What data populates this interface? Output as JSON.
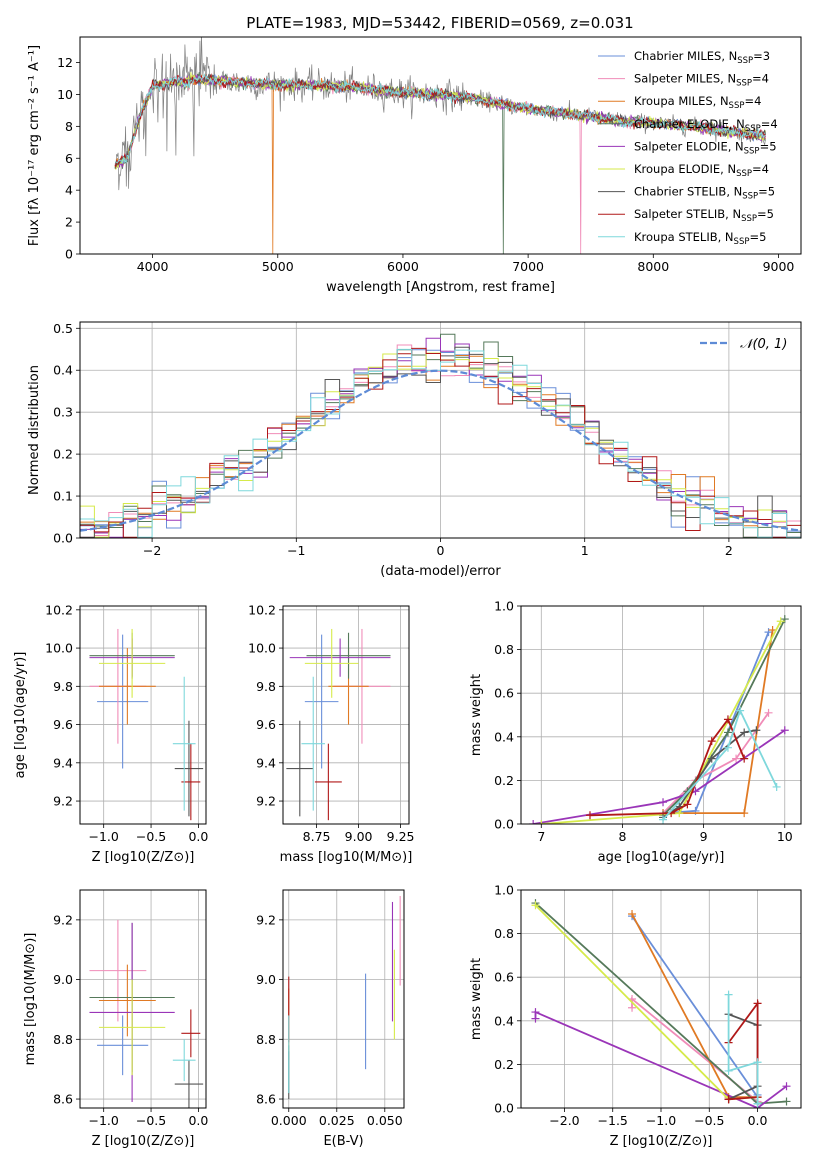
{
  "figure": {
    "title": "PLATE=1983, MJD=53442, FIBERID=0569, z=0.031"
  },
  "colors": {
    "Chabrier MILES": "#6a8fd9",
    "Salpeter MILES": "#f08cb8",
    "Kroupa MILES": "#e07a24",
    "Chabrier ELODIE": "#55795a",
    "Salpeter ELODIE": "#9a35b8",
    "Kroupa ELODIE": "#d6ea4a",
    "Chabrier STELIB": "#555555",
    "Salpeter STELIB": "#b01818",
    "Kroupa STELIB": "#7fd8dc",
    "data": "#808080",
    "normal": "#5e8bd6"
  },
  "chart_data": [
    {
      "id": "spectrum",
      "type": "line",
      "title": "PLATE=1983, MJD=53442, FIBERID=0569, z=0.031",
      "xlabel": "wavelength [Angstrom, rest frame]",
      "ylabel": "Flux [fλ 10⁻¹⁷ erg cm⁻² s⁻¹ A⁻¹]",
      "xlim": [
        3420,
        9180
      ],
      "ylim": [
        0,
        13.6
      ],
      "xticks": [
        4000,
        5000,
        6000,
        7000,
        8000,
        9000
      ],
      "yticks": [
        0,
        2,
        4,
        6,
        8,
        10,
        12
      ],
      "grid": false,
      "legend_position": "top-right",
      "series": [
        {
          "name": "Chabrier MILES",
          "nssp": "3"
        },
        {
          "name": "Salpeter MILES",
          "nssp": "4"
        },
        {
          "name": "Kroupa MILES",
          "nssp": "4"
        },
        {
          "name": "Chabrier ELODIE",
          "nssp": "4"
        },
        {
          "name": "Salpeter ELODIE",
          "nssp": "5"
        },
        {
          "name": "Kroupa ELODIE",
          "nssp": "4"
        },
        {
          "name": "Chabrier STELIB",
          "nssp": "5"
        },
        {
          "name": "Salpeter STELIB",
          "nssp": "5"
        },
        {
          "name": "Kroupa STELIB",
          "nssp": "5"
        }
      ],
      "continuum": {
        "x": [
          3700,
          3800,
          3900,
          4000,
          4100,
          4200,
          4400,
          4600,
          4800,
          5000,
          5200,
          5500,
          5800,
          6000,
          6300,
          6600,
          6800,
          7000,
          7300,
          7600,
          7800,
          8000,
          8300,
          8600,
          8900
        ],
        "y": [
          5.8,
          6.4,
          9.0,
          10.8,
          11.0,
          11.1,
          10.9,
          10.8,
          10.7,
          10.6,
          10.6,
          10.5,
          10.3,
          10.1,
          10.0,
          9.7,
          9.4,
          9.1,
          8.8,
          8.5,
          8.3,
          8.2,
          8.0,
          7.7,
          7.4
        ]
      }
    },
    {
      "id": "residuals",
      "type": "histogram",
      "xlabel": "(data-model)/error",
      "ylabel": "Normed distribution",
      "xlim": [
        -2.5,
        2.5
      ],
      "ylim": [
        0,
        0.515
      ],
      "xticks": [
        -2,
        -1,
        0,
        1,
        2
      ],
      "yticks": [
        0.0,
        0.1,
        0.2,
        0.3,
        0.4,
        0.5
      ],
      "grid": true,
      "legend": "𝒩(0, 1)",
      "legend_position": "top-right",
      "bin_width": 0.1
    },
    {
      "id": "age-vs-Z",
      "type": "errorbar",
      "xlabel": "Z [log10(Z/Z⊙)]",
      "ylabel": "age  [log10(age/yr)]",
      "xlim": [
        -1.25,
        0.08
      ],
      "ylim": [
        9.08,
        10.22
      ],
      "xticks": [
        -1.0,
        -0.5,
        0.0
      ],
      "yticks": [
        9.2,
        9.4,
        9.6,
        9.8,
        10.0,
        10.2
      ],
      "grid": true,
      "points": [
        {
          "model": "Chabrier MILES",
          "x": -0.8,
          "y": 9.72,
          "xerr": 0.27,
          "yerr": 0.35
        },
        {
          "model": "Salpeter MILES",
          "x": -0.85,
          "y": 9.8,
          "xerr": 0.3,
          "yerr": 0.3
        },
        {
          "model": "Kroupa MILES",
          "x": -0.75,
          "y": 9.8,
          "xerr": 0.3,
          "yerr": 0.2
        },
        {
          "model": "Chabrier ELODIE",
          "x": -0.7,
          "y": 9.96,
          "xerr": 0.45,
          "yerr": 0.12
        },
        {
          "model": "Salpeter ELODIE",
          "x": -0.7,
          "y": 9.95,
          "xerr": 0.45,
          "yerr": 0.1
        },
        {
          "model": "Kroupa ELODIE",
          "x": -0.7,
          "y": 9.92,
          "xerr": 0.35,
          "yerr": 0.18
        },
        {
          "model": "Chabrier STELIB",
          "x": -0.1,
          "y": 9.37,
          "xerr": 0.15,
          "yerr": 0.25
        },
        {
          "model": "Salpeter STELIB",
          "x": -0.08,
          "y": 9.3,
          "xerr": 0.1,
          "yerr": 0.2
        },
        {
          "model": "Kroupa STELIB",
          "x": -0.15,
          "y": 9.5,
          "xerr": 0.12,
          "yerr": 0.35
        }
      ]
    },
    {
      "id": "age-vs-mass",
      "type": "errorbar",
      "xlabel": "mass [log10(M/M⊙)]",
      "ylabel": "",
      "xlim": [
        8.55,
        9.3
      ],
      "ylim": [
        9.08,
        10.22
      ],
      "xticks": [
        8.75,
        9.0,
        9.25
      ],
      "yticks": [
        9.2,
        9.4,
        9.6,
        9.8,
        10.0,
        10.2
      ],
      "grid": true,
      "points": [
        {
          "model": "Chabrier MILES",
          "x": 8.78,
          "y": 9.72,
          "xerr": 0.1,
          "yerr": 0.35
        },
        {
          "model": "Salpeter MILES",
          "x": 9.02,
          "y": 9.8,
          "xerr": 0.17,
          "yerr": 0.3
        },
        {
          "model": "Kroupa MILES",
          "x": 8.94,
          "y": 9.8,
          "xerr": 0.12,
          "yerr": 0.2
        },
        {
          "model": "Chabrier ELODIE",
          "x": 8.94,
          "y": 9.96,
          "xerr": 0.25,
          "yerr": 0.12
        },
        {
          "model": "Salpeter ELODIE",
          "x": 8.89,
          "y": 9.95,
          "xerr": 0.3,
          "yerr": 0.1
        },
        {
          "model": "Kroupa ELODIE",
          "x": 8.84,
          "y": 9.92,
          "xerr": 0.16,
          "yerr": 0.18
        },
        {
          "model": "Chabrier STELIB",
          "x": 8.65,
          "y": 9.37,
          "xerr": 0.08,
          "yerr": 0.25
        },
        {
          "model": "Salpeter STELIB",
          "x": 8.82,
          "y": 9.3,
          "xerr": 0.08,
          "yerr": 0.2
        },
        {
          "model": "Kroupa STELIB",
          "x": 8.73,
          "y": 9.5,
          "xerr": 0.07,
          "yerr": 0.35
        }
      ]
    },
    {
      "id": "weight-vs-age",
      "type": "line",
      "xlabel": "age  [log10(age/yr)]",
      "ylabel": "mass weight",
      "xlim": [
        6.75,
        10.2
      ],
      "ylim": [
        0,
        1.0
      ],
      "xticks": [
        7,
        8,
        9,
        10
      ],
      "yticks": [
        0.0,
        0.2,
        0.4,
        0.6,
        0.8,
        1.0
      ],
      "grid": true,
      "series": [
        {
          "name": "Chabrier MILES",
          "x": [
            8.5,
            8.9,
            9.8
          ],
          "y": [
            0.05,
            0.06,
            0.88
          ]
        },
        {
          "name": "Salpeter MILES",
          "x": [
            8.5,
            8.9,
            9.4,
            9.8
          ],
          "y": [
            0.05,
            0.2,
            0.3,
            0.51
          ]
        },
        {
          "name": "Kroupa MILES",
          "x": [
            8.5,
            9.5,
            9.85
          ],
          "y": [
            0.05,
            0.05,
            0.89
          ]
        },
        {
          "name": "Chabrier ELODIE",
          "x": [
            8.5,
            8.8,
            9.3,
            10.0
          ],
          "y": [
            0.04,
            0.15,
            0.42,
            0.94
          ]
        },
        {
          "name": "Salpeter ELODIE",
          "x": [
            6.9,
            8.5,
            8.9,
            10.0
          ],
          "y": [
            0.0,
            0.1,
            0.15,
            0.43
          ]
        },
        {
          "name": "Kroupa ELODIE",
          "x": [
            7.0,
            8.7,
            9.95
          ],
          "y": [
            0.0,
            0.05,
            0.93
          ]
        },
        {
          "name": "Chabrier STELIB",
          "x": [
            8.5,
            8.7,
            9.1,
            9.5,
            9.65
          ],
          "y": [
            0.03,
            0.08,
            0.3,
            0.42,
            0.43
          ]
        },
        {
          "name": "Salpeter STELIB",
          "x": [
            7.6,
            8.6,
            8.8,
            9.1,
            9.3,
            9.5
          ],
          "y": [
            0.04,
            0.05,
            0.09,
            0.38,
            0.48,
            0.3
          ]
        },
        {
          "name": "Kroupa STELIB",
          "x": [
            8.5,
            9.3,
            9.45,
            9.9
          ],
          "y": [
            0.02,
            0.35,
            0.52,
            0.17
          ]
        }
      ]
    },
    {
      "id": "mass-vs-Z",
      "type": "errorbar",
      "xlabel": "Z [log10(Z/Z⊙)]",
      "ylabel": "mass [log10(M/M⊙)]",
      "xlim": [
        -1.25,
        0.08
      ],
      "ylim": [
        8.57,
        9.3
      ],
      "xticks": [
        -1.0,
        -0.5,
        0.0
      ],
      "yticks": [
        8.6,
        8.8,
        9.0,
        9.2
      ],
      "grid": true,
      "points": [
        {
          "model": "Chabrier MILES",
          "x": -0.8,
          "y": 8.78,
          "xerr": 0.27,
          "yerr": 0.1
        },
        {
          "model": "Salpeter MILES",
          "x": -0.85,
          "y": 9.03,
          "xerr": 0.3,
          "yerr": 0.17
        },
        {
          "model": "Kroupa MILES",
          "x": -0.75,
          "y": 8.93,
          "xerr": 0.3,
          "yerr": 0.12
        },
        {
          "model": "Chabrier ELODIE",
          "x": -0.7,
          "y": 8.94,
          "xerr": 0.45,
          "yerr": 0.25
        },
        {
          "model": "Salpeter ELODIE",
          "x": -0.7,
          "y": 8.89,
          "xerr": 0.45,
          "yerr": 0.3
        },
        {
          "model": "Kroupa ELODIE",
          "x": -0.7,
          "y": 8.84,
          "xerr": 0.35,
          "yerr": 0.16
        },
        {
          "model": "Chabrier STELIB",
          "x": -0.1,
          "y": 8.65,
          "xerr": 0.15,
          "yerr": 0.08
        },
        {
          "model": "Salpeter STELIB",
          "x": -0.08,
          "y": 8.82,
          "xerr": 0.1,
          "yerr": 0.08
        },
        {
          "model": "Kroupa STELIB",
          "x": -0.15,
          "y": 8.73,
          "xerr": 0.12,
          "yerr": 0.07
        }
      ]
    },
    {
      "id": "mass-vs-ebv",
      "type": "errorbar",
      "xlabel": "E(B-V)",
      "ylabel": "",
      "xlim": [
        -0.003,
        0.06
      ],
      "ylim": [
        8.57,
        9.3
      ],
      "xticks": [
        0.0,
        0.025,
        0.05
      ],
      "yticks": [
        8.6,
        8.8,
        9.0,
        9.2
      ],
      "grid": true,
      "points": [
        {
          "model": "Chabrier MILES",
          "x": 0.04,
          "y": 8.86,
          "xerr": 0,
          "yerr": 0.16
        },
        {
          "model": "Salpeter MILES",
          "x": 0.058,
          "y": 9.13,
          "xerr": 0,
          "yerr": 0.15
        },
        {
          "model": "Kroupa MILES",
          "x": 0.0,
          "y": 8.85,
          "xerr": 0,
          "yerr": 0.12
        },
        {
          "model": "Chabrier ELODIE",
          "x": 0.0,
          "y": 8.7,
          "xerr": 0,
          "yerr": 0.08
        },
        {
          "model": "Salpeter ELODIE",
          "x": 0.054,
          "y": 9.06,
          "xerr": 0,
          "yerr": 0.2
        },
        {
          "model": "Kroupa ELODIE",
          "x": 0.055,
          "y": 8.95,
          "xerr": 0,
          "yerr": 0.15
        },
        {
          "model": "Chabrier STELIB",
          "x": 0.0,
          "y": 8.68,
          "xerr": 0,
          "yerr": 0.08
        },
        {
          "model": "Salpeter STELIB",
          "x": 0.0,
          "y": 8.9,
          "xerr": 0,
          "yerr": 0.11
        },
        {
          "model": "Kroupa STELIB",
          "x": 0.0,
          "y": 8.75,
          "xerr": 0,
          "yerr": 0.13
        }
      ]
    },
    {
      "id": "weight-vs-Z",
      "type": "line",
      "xlabel": "Z [log10(Z/Z⊙)]",
      "ylabel": "mass weight",
      "xlim": [
        -2.45,
        0.45
      ],
      "ylim": [
        0,
        1.0
      ],
      "xticks": [
        -2.0,
        -1.5,
        -1.0,
        -0.5,
        0.0
      ],
      "yticks": [
        0.0,
        0.2,
        0.4,
        0.6,
        0.8,
        1.0
      ],
      "grid": true,
      "series": [
        {
          "name": "Chabrier MILES",
          "x": [
            -1.3,
            0.0,
            0.0
          ],
          "y": [
            0.88,
            0.05,
            0.06
          ]
        },
        {
          "name": "Salpeter MILES",
          "x": [
            -1.3,
            -1.3,
            0.0
          ],
          "y": [
            0.46,
            0.5,
            0.03
          ]
        },
        {
          "name": "Kroupa MILES",
          "x": [
            -1.3,
            -0.3,
            0.0
          ],
          "y": [
            0.89,
            0.05,
            0.05
          ]
        },
        {
          "name": "Chabrier ELODIE",
          "x": [
            -2.3,
            0.0,
            0.3
          ],
          "y": [
            0.94,
            0.02,
            0.03
          ]
        },
        {
          "name": "Salpeter ELODIE",
          "x": [
            -2.3,
            -2.3,
            0.0,
            0.3
          ],
          "y": [
            0.41,
            0.44,
            0.0,
            0.1
          ]
        },
        {
          "name": "Kroupa ELODIE",
          "x": [
            -2.3,
            -0.3,
            0.0
          ],
          "y": [
            0.93,
            0.04,
            0.05
          ]
        },
        {
          "name": "Chabrier STELIB",
          "x": [
            -0.3,
            0.0,
            0.0,
            -0.3
          ],
          "y": [
            0.43,
            0.38,
            0.1,
            0.04
          ]
        },
        {
          "name": "Salpeter STELIB",
          "x": [
            -0.3,
            0.0,
            0.0,
            -0.3,
            -0.3
          ],
          "y": [
            0.3,
            0.48,
            0.05,
            0.04,
            0.04
          ]
        },
        {
          "name": "Kroupa STELIB",
          "x": [
            -0.3,
            -0.3,
            0.0,
            0.0
          ],
          "y": [
            0.52,
            0.17,
            0.21,
            0.02
          ]
        }
      ]
    }
  ]
}
